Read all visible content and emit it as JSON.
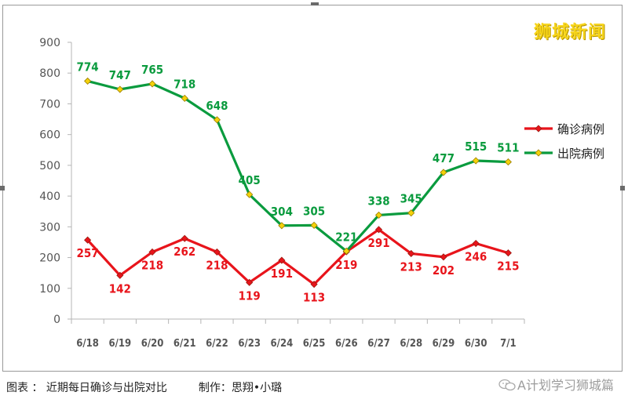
{
  "brand": "狮城新闻",
  "caption": {
    "label": "图表 ： 近期每日确诊与出院对比",
    "credit": "制作：思翔•小璐"
  },
  "watermark": "A计划学习狮城篇",
  "colors": {
    "confirmed": "#e8141b",
    "discharged": "#0a9b3e",
    "marker": "#f4d20b"
  },
  "chart_data": {
    "type": "line",
    "categories": [
      "6/18",
      "6/19",
      "6/20",
      "6/21",
      "6/22",
      "6/23",
      "6/24",
      "6/25",
      "6/26",
      "6/27",
      "6/28",
      "6/29",
      "6/30",
      "7/1"
    ],
    "series": [
      {
        "name": "确诊病例",
        "values": [
          257,
          142,
          218,
          262,
          218,
          119,
          191,
          113,
          219,
          291,
          213,
          202,
          246,
          215
        ]
      },
      {
        "name": "出院病例",
        "values": [
          774,
          747,
          765,
          718,
          648,
          405,
          304,
          305,
          221,
          338,
          345,
          477,
          515,
          511
        ]
      }
    ],
    "yticks": [
      0,
      100,
      200,
      300,
      400,
      500,
      600,
      700,
      800,
      900
    ],
    "ylim": [
      0,
      900
    ],
    "grid": false,
    "legend": "right"
  }
}
